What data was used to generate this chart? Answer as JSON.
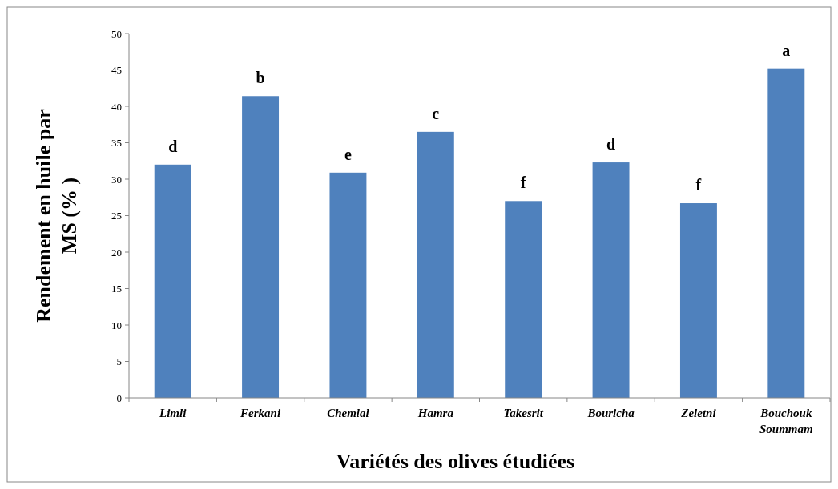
{
  "chart_data": {
    "type": "bar",
    "xlabel": "Variétés des olives étudiées",
    "ylabel": "Rendement en huile par MS (% )",
    "categories": [
      "Limli",
      "Ferkani",
      "Chemlal",
      "Hamra",
      "Takesrit",
      "Bouricha",
      "Zeletni",
      "Bouchouk Soummam"
    ],
    "values": [
      32.0,
      41.4,
      30.9,
      36.5,
      27.0,
      32.3,
      26.7,
      45.2
    ],
    "color": "#4f81bd",
    "ylim": [
      0,
      50
    ],
    "yticks": [
      0,
      5,
      10,
      15,
      20,
      25,
      30,
      35,
      40,
      45,
      50
    ],
    "grid": false,
    "annotations": [
      {
        "text": "d",
        "x": "Limli",
        "y": 32.0
      },
      {
        "text": "b",
        "x": "Ferkani",
        "y": 41.4
      },
      {
        "text": "e",
        "x": "Chemlal",
        "y": 30.9
      },
      {
        "text": "c",
        "x": "Hamra",
        "y": 36.5
      },
      {
        "text": "f",
        "x": "Takesrit",
        "y": 27.0
      },
      {
        "text": "d",
        "x": "Bouricha",
        "y": 32.3
      },
      {
        "text": "f",
        "x": "Zeletni",
        "y": 26.7
      },
      {
        "text": "a",
        "x": "Bouchouk Soummam",
        "y": 45.2
      }
    ]
  }
}
